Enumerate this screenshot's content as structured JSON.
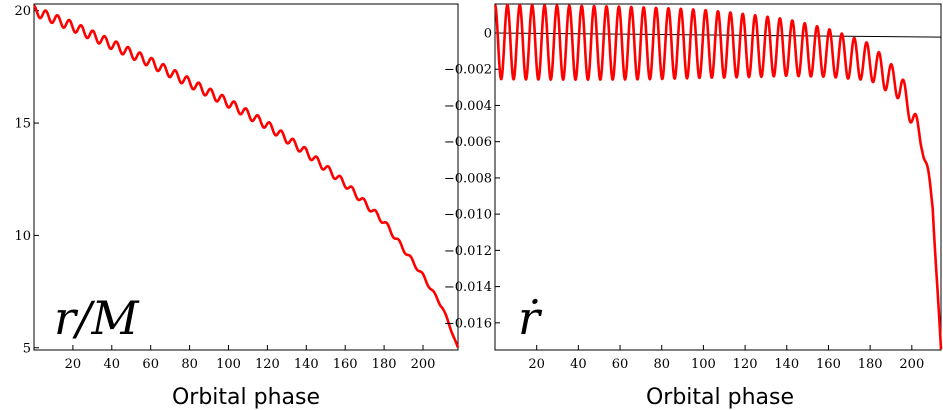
{
  "chart_data": [
    {
      "type": "line",
      "annotation": "r/M",
      "xlabel": "Orbital phase",
      "ylabel": "",
      "xlim": [
        0,
        218
      ],
      "ylim": [
        4.9,
        20.3
      ],
      "x_ticks": [
        20,
        40,
        60,
        80,
        100,
        120,
        140,
        160,
        180,
        200
      ],
      "x_tick_labels": [
        "20",
        "40",
        "60",
        "80",
        "100",
        "120",
        "140",
        "160",
        "180",
        "200"
      ],
      "y_ticks": [
        5,
        10,
        15,
        20
      ],
      "y_tick_labels": [
        "5",
        "10",
        "15",
        "20"
      ],
      "grid": false,
      "series": [
        {
          "color": "#ff0000",
          "points": [
            [
              0,
              20.0
            ],
            [
              20,
              19.3
            ],
            [
              40,
              18.5
            ],
            [
              60,
              17.7
            ],
            [
              80,
              16.8
            ],
            [
              100,
              15.9
            ],
            [
              120,
              14.9
            ],
            [
              140,
              13.7
            ],
            [
              160,
              12.3
            ],
            [
              180,
              10.6
            ],
            [
              200,
              8.2
            ],
            [
              210,
              6.8
            ],
            [
              218,
              5.0
            ]
          ],
          "oscillation": {
            "cycles": 36,
            "amplitude_start": 0.22,
            "amplitude_end": 0.05
          }
        }
      ]
    },
    {
      "type": "line",
      "annotation": "ṙ",
      "xlabel": "Orbital phase",
      "ylabel": "",
      "xlim": [
        0,
        214
      ],
      "ylim": [
        -0.0175,
        0.0016
      ],
      "x_ticks": [
        20,
        40,
        60,
        80,
        100,
        120,
        140,
        160,
        180,
        200
      ],
      "x_tick_labels": [
        "20",
        "40",
        "60",
        "80",
        "100",
        "120",
        "140",
        "160",
        "180",
        "200"
      ],
      "y_ticks": [
        0,
        -0.002,
        -0.004,
        -0.006,
        -0.008,
        -0.01,
        -0.012,
        -0.014,
        -0.016
      ],
      "y_tick_labels": [
        "0",
        "−0.002",
        "−0.004",
        "−0.006",
        "−0.008",
        "−0.010",
        "−0.012",
        "−0.014",
        "−0.016"
      ],
      "grid": false,
      "reference_line": {
        "color": "#000000",
        "from": [
          0,
          0.0
        ],
        "to": [
          214,
          -0.00023
        ]
      },
      "series": [
        {
          "color": "#ff0000",
          "mean": [
            [
              0,
              -0.0005
            ],
            [
              100,
              -0.0006
            ],
            [
              140,
              -0.0008
            ],
            [
              160,
              -0.0011
            ],
            [
              180,
              -0.0016
            ],
            [
              195,
              -0.003
            ],
            [
              205,
              -0.006
            ],
            [
              210,
              -0.0095
            ],
            [
              214,
              -0.0175
            ]
          ],
          "oscillation": {
            "cycles": 36,
            "amplitude_start": 0.00205,
            "amplitude_end": 0.0003
          }
        }
      ]
    }
  ]
}
